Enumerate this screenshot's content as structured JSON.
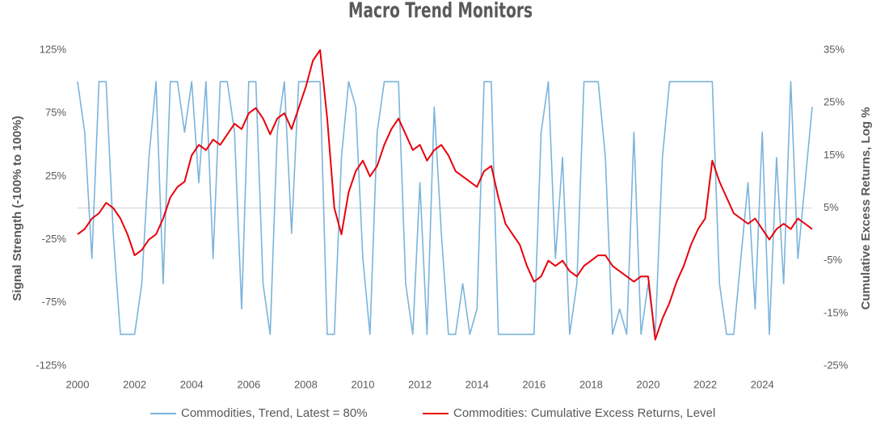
{
  "chart_data": {
    "type": "line",
    "title": "Macro Trend Monitors",
    "y_label": "Signal Strength (-100% to 100%)",
    "y2_label": "Cumulative Excess Returns, Log %",
    "x": [
      2000,
      2000.25,
      2000.5,
      2000.75,
      2001,
      2001.25,
      2001.5,
      2001.75,
      2002,
      2002.25,
      2002.5,
      2002.75,
      2003,
      2003.25,
      2003.5,
      2003.75,
      2004,
      2004.25,
      2004.5,
      2004.75,
      2005,
      2005.25,
      2005.5,
      2005.75,
      2006,
      2006.25,
      2006.5,
      2006.75,
      2007,
      2007.25,
      2007.5,
      2007.75,
      2008,
      2008.25,
      2008.5,
      2008.75,
      2009,
      2009.25,
      2009.5,
      2009.75,
      2010,
      2010.25,
      2010.5,
      2010.75,
      2011,
      2011.25,
      2011.5,
      2011.75,
      2012,
      2012.25,
      2012.5,
      2012.75,
      2013,
      2013.25,
      2013.5,
      2013.75,
      2014,
      2014.25,
      2014.5,
      2014.75,
      2015,
      2015.25,
      2015.5,
      2015.75,
      2016,
      2016.25,
      2016.5,
      2016.75,
      2017,
      2017.25,
      2017.5,
      2017.75,
      2018,
      2018.25,
      2018.5,
      2018.75,
      2019,
      2019.25,
      2019.5,
      2019.75,
      2020,
      2020.25,
      2020.5,
      2020.75,
      2021,
      2021.25,
      2021.5,
      2021.75,
      2022,
      2022.25,
      2022.5,
      2022.75,
      2023,
      2023.25,
      2023.5,
      2023.75,
      2024,
      2024.25,
      2024.5,
      2024.75,
      2025,
      2025.25,
      2025.5,
      2025.75
    ],
    "series": [
      {
        "name": "Commodities, Trend, Latest = 80%",
        "color": "#7ab4dc",
        "values": [
          100,
          60,
          -40,
          100,
          100,
          -20,
          -100,
          -100,
          -100,
          -60,
          40,
          100,
          -60,
          100,
          100,
          60,
          100,
          20,
          100,
          -40,
          100,
          100,
          60,
          -80,
          100,
          100,
          -60,
          -100,
          60,
          100,
          -20,
          100,
          100,
          100,
          100,
          -100,
          -100,
          40,
          100,
          80,
          -40,
          -100,
          60,
          100,
          100,
          100,
          -60,
          -100,
          20,
          -100,
          80,
          -20,
          -100,
          -100,
          -60,
          -100,
          -80,
          100,
          100,
          -100,
          -100,
          -100,
          -100,
          -100,
          -100,
          60,
          100,
          -40,
          40,
          -100,
          -60,
          100,
          100,
          100,
          40,
          -100,
          -80,
          -100,
          60,
          -100,
          -60,
          -100,
          40,
          100,
          100,
          100,
          100,
          100,
          100,
          100,
          -60,
          -100,
          -100,
          -40,
          20,
          -80,
          60,
          -100,
          40,
          -60,
          100,
          -40,
          20,
          80
        ]
      },
      {
        "name": "Commodities: Cumulative Excess Returns, Level",
        "color": "#e8000b",
        "axis": "y2",
        "values": [
          0,
          1,
          3,
          4,
          6,
          5,
          3,
          0,
          -4,
          -3,
          -1,
          0,
          3,
          7,
          9,
          10,
          15,
          17,
          16,
          18,
          17,
          19,
          21,
          20,
          23,
          24,
          22,
          19,
          22,
          23,
          20,
          24,
          28,
          33,
          35,
          22,
          5,
          0,
          8,
          12,
          14,
          11,
          13,
          17,
          20,
          22,
          19,
          16,
          17,
          14,
          16,
          17,
          15,
          12,
          11,
          10,
          9,
          12,
          13,
          7,
          2,
          0,
          -2,
          -6,
          -9,
          -8,
          -5,
          -6,
          -5,
          -7,
          -8,
          -6,
          -5,
          -4,
          -4,
          -6,
          -7,
          -8,
          -9,
          -8,
          -8,
          -20,
          -16,
          -13,
          -9,
          -6,
          -2,
          1,
          3,
          14,
          10,
          7,
          4,
          3,
          2,
          3,
          1,
          -1,
          1,
          2,
          1,
          3,
          2,
          1
        ]
      }
    ],
    "xlim": [
      2000,
      2025.75
    ],
    "xticks": [
      2000,
      2002,
      2004,
      2006,
      2008,
      2010,
      2012,
      2014,
      2016,
      2018,
      2020,
      2022,
      2024
    ],
    "ylim": [
      -125,
      125
    ],
    "yticks": [
      {
        "value": -125,
        "label": "-125%"
      },
      {
        "value": -75,
        "label": "-75%"
      },
      {
        "value": -25,
        "label": "-25%"
      },
      {
        "value": 25,
        "label": "25%"
      },
      {
        "value": 75,
        "label": "75%"
      },
      {
        "value": 125,
        "label": "125%"
      }
    ],
    "y2lim": [
      -25,
      35
    ],
    "y2ticks": [
      {
        "value": -25,
        "label": "-25%"
      },
      {
        "value": -15,
        "label": "-15%"
      },
      {
        "value": -5,
        "label": "-5%"
      },
      {
        "value": 5,
        "label": "5%"
      },
      {
        "value": 15,
        "label": "15%"
      },
      {
        "value": 25,
        "label": "25%"
      },
      {
        "value": 35,
        "label": "35%"
      }
    ],
    "zero_line": true,
    "legend": "bottom"
  }
}
